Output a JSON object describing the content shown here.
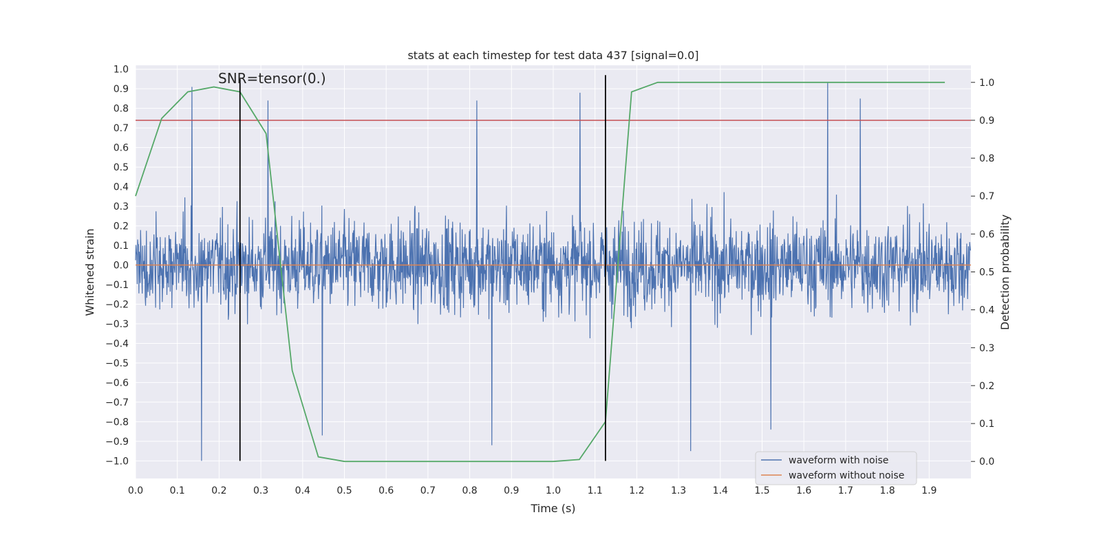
{
  "chart_data": {
    "type": "line",
    "title": "stats at each timestep for test data 437 [signal=0.0]",
    "xlabel": "Time (s)",
    "ylabel": "Whitened strain",
    "y2label": "Detection probability",
    "xlim": [
      0.0,
      2.0
    ],
    "ylim": [
      -1.09,
      1.02
    ],
    "y2lim": [
      -0.045,
      1.045
    ],
    "grid": true,
    "legend_position": "lower-right",
    "x_ticks": [
      "0.0",
      "0.1",
      "0.2",
      "0.3",
      "0.4",
      "0.5",
      "0.6",
      "0.7",
      "0.8",
      "0.9",
      "1.0",
      "1.1",
      "1.2",
      "1.3",
      "1.4",
      "1.5",
      "1.6",
      "1.7",
      "1.8",
      "1.9"
    ],
    "y_ticks": [
      "1.0",
      "0.9",
      "0.8",
      "0.7",
      "0.6",
      "0.5",
      "0.4",
      "0.3",
      "0.2",
      "0.1",
      "0.0",
      "−0.1",
      "−0.2",
      "−0.3",
      "−0.4",
      "−0.5",
      "−0.6",
      "−0.7",
      "−0.8",
      "−0.9",
      "−1.0"
    ],
    "y2_ticks": [
      "1.0",
      "0.9",
      "0.8",
      "0.7",
      "0.6",
      "0.5",
      "0.4",
      "0.3",
      "0.2",
      "0.1",
      "0.0"
    ],
    "annotation": "SNR=tensor(0.)",
    "series": [
      {
        "name": "waveform with noise",
        "axis": "left",
        "color": "#4c72b0",
        "style": "noise",
        "amplitude_typical": 0.35,
        "spikes": [
          {
            "x": 0.135,
            "y": 0.91
          },
          {
            "x": 0.158,
            "y": -1.0
          },
          {
            "x": 0.317,
            "y": 0.84
          },
          {
            "x": 0.447,
            "y": -0.87
          },
          {
            "x": 0.817,
            "y": 0.84
          },
          {
            "x": 0.853,
            "y": -0.92
          },
          {
            "x": 1.064,
            "y": 0.88
          },
          {
            "x": 1.329,
            "y": -0.95
          },
          {
            "x": 1.657,
            "y": 0.93
          },
          {
            "x": 1.735,
            "y": 0.85
          },
          {
            "x": 1.521,
            "y": -0.84
          }
        ]
      },
      {
        "name": "waveform without noise",
        "axis": "left",
        "color": "#dd8452",
        "x": [
          0.0,
          2.0
        ],
        "y": [
          0.0,
          0.0
        ]
      },
      {
        "name": "",
        "axis": "right",
        "color": "#55a868",
        "x": [
          0.0,
          0.0625,
          0.125,
          0.1875,
          0.25,
          0.3125,
          0.375,
          0.4375,
          0.5,
          0.5625,
          0.625,
          0.6875,
          0.75,
          0.8125,
          0.875,
          0.9375,
          1.0,
          1.0625,
          1.125,
          1.1875,
          1.25,
          1.3125,
          1.375,
          1.4375,
          1.5,
          1.5625,
          1.625,
          1.6875,
          1.75,
          1.8125,
          1.875,
          1.9375
        ],
        "y": [
          0.7,
          0.905,
          0.975,
          0.988,
          0.975,
          0.865,
          0.24,
          0.012,
          0.0,
          0.0,
          0.0,
          0.0,
          0.0,
          0.0,
          0.0,
          0.0,
          0.0,
          0.005,
          0.105,
          0.975,
          1.0,
          1.0,
          1.0,
          1.0,
          1.0,
          1.0,
          1.0,
          1.0,
          1.0,
          1.0,
          1.0,
          1.0
        ]
      },
      {
        "name": "",
        "axis": "right",
        "color": "#c44e52",
        "x": [
          0.0,
          2.0
        ],
        "y": [
          0.9,
          0.9
        ]
      }
    ],
    "vlines": [
      {
        "x": 0.25,
        "y_range": [
          -1.0,
          0.95
        ],
        "color": "#000000"
      },
      {
        "x": 1.125,
        "y_range": [
          -1.0,
          0.97
        ],
        "color": "#000000"
      }
    ]
  }
}
